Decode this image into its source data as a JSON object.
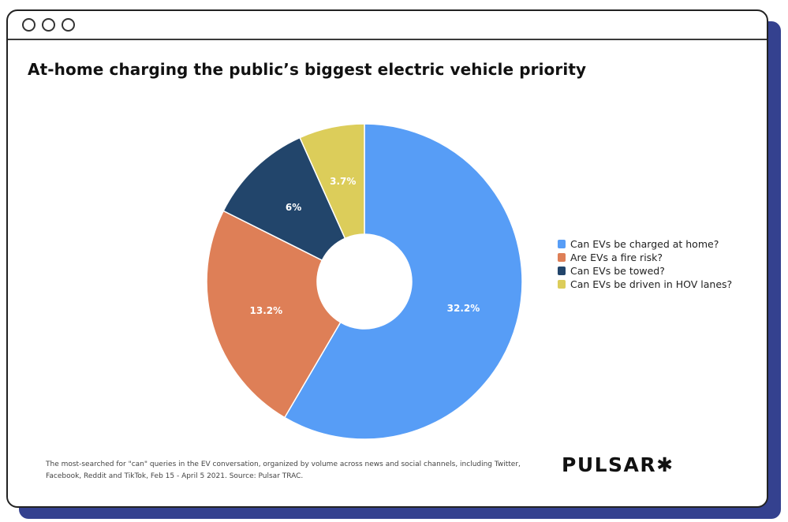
{
  "window": {
    "controls": [
      "circle-1",
      "circle-2",
      "circle-3"
    ],
    "shadow_color": "#34418f"
  },
  "title": "At-home charging the public’s biggest electric vehicle priority",
  "chart_data": {
    "type": "pie",
    "donut": true,
    "title": "At-home charging the public’s biggest electric vehicle priority",
    "categories": [
      "Can EVs be charged at home?",
      "Are EVs a fire risk?",
      "Can EVs be towed?",
      "Can EVs be driven in HOV lanes?"
    ],
    "values": [
      32.2,
      13.2,
      6,
      3.7
    ],
    "labels": [
      "32.2%",
      "13.2%",
      "6%",
      "3.7%"
    ],
    "colors": [
      "#579df6",
      "#de7f57",
      "#22456b",
      "#dccd5a"
    ],
    "start_angle": "12 o'clock",
    "direction": "clockwise",
    "legend_position": "right"
  },
  "footnote": "The most-searched for \"can\" queries in the EV conversation, organized by volume across news and social channels, including Twitter, Facebook, Reddit and TikTok, Feb 15 - April 5 2021. Source: Pulsar TRAC.",
  "logo": "PULSAR✱"
}
